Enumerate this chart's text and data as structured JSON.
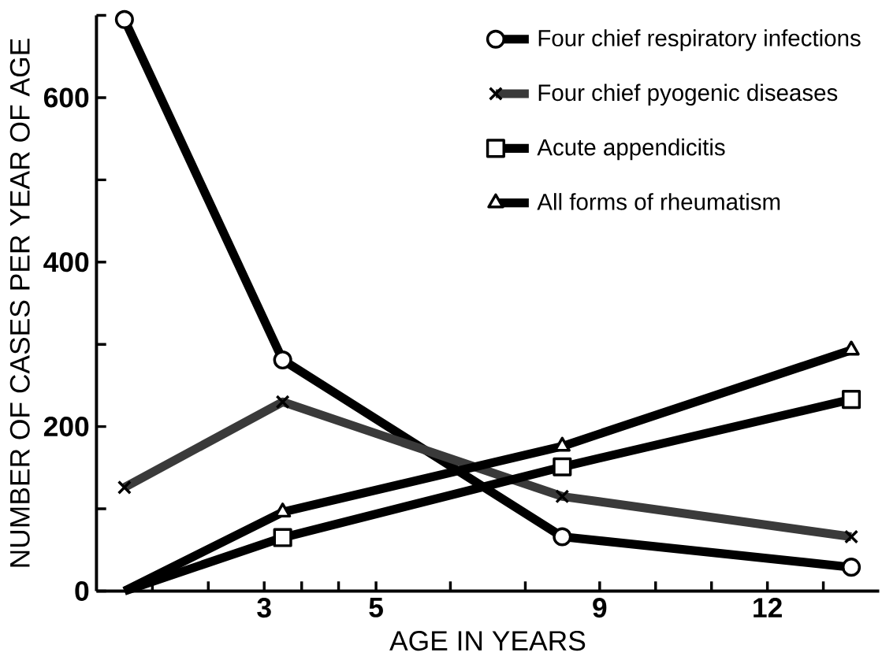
{
  "chart_data": {
    "type": "line",
    "xlabel": "AGE IN YEARS",
    "ylabel": "NUMBER OF CASES PER YEAR OF AGE",
    "x": [
      0.5,
      3.33,
      8.33,
      13.5
    ],
    "xlim": [
      0,
      14
    ],
    "ylim": [
      0,
      700
    ],
    "xticks": [
      {
        "value": 1,
        "label": null
      },
      {
        "value": 2,
        "label": null
      },
      3,
      {
        "value": 3.67,
        "label": null
      },
      {
        "value": 4.33,
        "label": null
      },
      5,
      {
        "value": 6.33,
        "label": null
      },
      {
        "value": 7.67,
        "label": null
      },
      9,
      {
        "value": 10,
        "label": null
      },
      {
        "value": 11,
        "label": null
      },
      12,
      {
        "value": 13,
        "label": null
      }
    ],
    "yticks": [
      0,
      {
        "value": 100,
        "label": null
      },
      200,
      {
        "value": 300,
        "label": null
      },
      400,
      {
        "value": 500,
        "label": null
      },
      600,
      {
        "value": 700,
        "label": null
      }
    ],
    "legend": "top right",
    "grid": false,
    "line_style": "solid",
    "series": [
      {
        "name": "Four chief respiratory infections",
        "color": "#000000",
        "marker": "circle",
        "values": [
          695,
          281,
          66,
          29
        ]
      },
      {
        "name": "Four chief pyogenic diseases",
        "color": "#3a3a3a",
        "marker": "cross",
        "values": [
          126,
          230,
          115,
          66
        ]
      },
      {
        "name": "Acute appendicitis",
        "color": "#000000",
        "marker": "square",
        "values": [
          0,
          65,
          151,
          233
        ]
      },
      {
        "name": "All forms of rheumatism",
        "color": "#000000",
        "marker": "triangle",
        "values": [
          0,
          96,
          176,
          293
        ]
      }
    ]
  }
}
